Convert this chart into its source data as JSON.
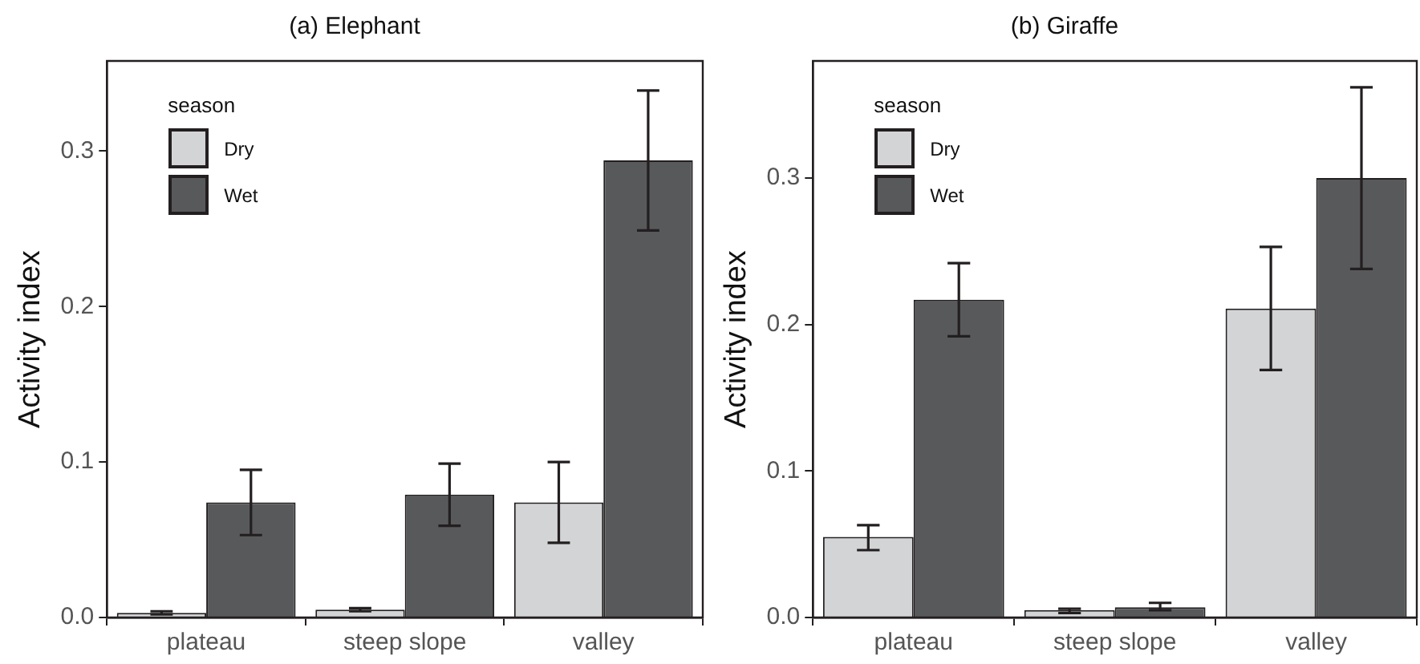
{
  "chart_data": [
    {
      "type": "bar",
      "title": "(a) Elephant",
      "ylabel": "Activity index",
      "legend_title": "season",
      "legend": "top left",
      "grid": false,
      "categories": [
        "plateau",
        "steep slope",
        "valley"
      ],
      "series": [
        {
          "name": "Dry",
          "color": "#d3d4d6",
          "values": [
            0.003,
            0.005,
            0.074
          ],
          "errors": [
            [
              0.002,
              0.004
            ],
            [
              0.004,
              0.006
            ],
            [
              0.048,
              0.1
            ]
          ]
        },
        {
          "name": "Wet",
          "color": "#58595b",
          "values": [
            0.074,
            0.079,
            0.294
          ],
          "errors": [
            [
              0.053,
              0.095
            ],
            [
              0.059,
              0.099
            ],
            [
              0.249,
              0.339
            ]
          ]
        }
      ],
      "ylim": [
        0,
        0.358
      ],
      "yticks": [
        {
          "value": 0,
          "label": "0.0"
        },
        {
          "value": 0.1,
          "label": "0.1"
        },
        {
          "value": 0.2,
          "label": "0.2"
        },
        {
          "value": 0.3,
          "label": "0.3"
        }
      ]
    },
    {
      "type": "bar",
      "title": "(b) Giraffe",
      "ylabel": "Activity index",
      "legend_title": "season",
      "legend": "top left",
      "grid": false,
      "categories": [
        "plateau",
        "steep slope",
        "valley"
      ],
      "series": [
        {
          "name": "Dry",
          "color": "#d3d4d6",
          "values": [
            0.055,
            0.005,
            0.211
          ],
          "errors": [
            [
              0.046,
              0.063
            ],
            [
              0.003,
              0.006
            ],
            [
              0.169,
              0.253
            ]
          ]
        },
        {
          "name": "Wet",
          "color": "#58595b",
          "values": [
            0.217,
            0.007,
            0.3
          ],
          "errors": [
            [
              0.192,
              0.242
            ],
            [
              0.005,
              0.01
            ],
            [
              0.238,
              0.362
            ]
          ]
        }
      ],
      "ylim": [
        0,
        0.38
      ],
      "yticks": [
        {
          "value": 0,
          "label": "0.0"
        },
        {
          "value": 0.1,
          "label": "0.1"
        },
        {
          "value": 0.2,
          "label": "0.2"
        },
        {
          "value": 0.3,
          "label": "0.3"
        }
      ]
    }
  ]
}
